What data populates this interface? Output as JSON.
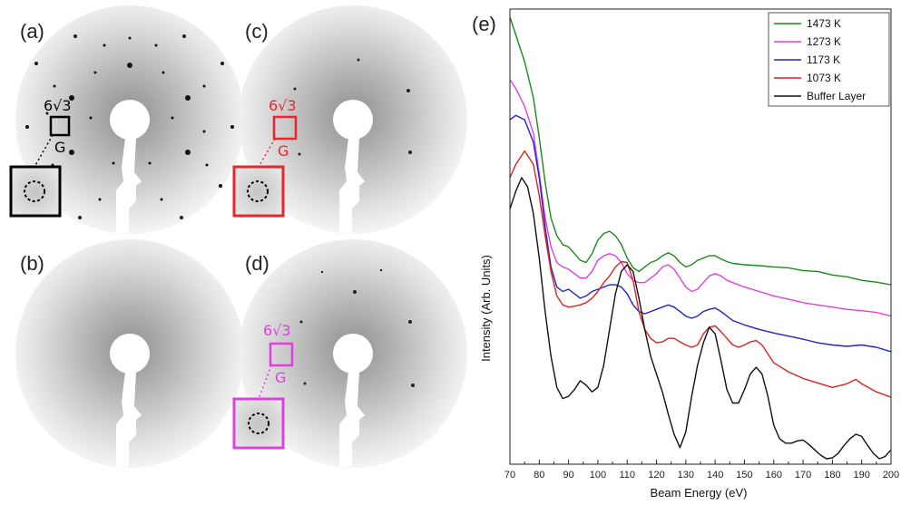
{
  "panels": {
    "a": {
      "label": "(a)",
      "annotation": "6√3",
      "sub": "G",
      "accent": "#000000"
    },
    "b": {
      "label": "(b)"
    },
    "c": {
      "label": "(c)",
      "annotation": "6√3",
      "sub": "G",
      "accent": "#e8262c"
    },
    "d": {
      "label": "(d)",
      "annotation": "6√3",
      "sub": "G",
      "accent": "#e040e0"
    }
  },
  "chart_data": {
    "type": "line",
    "panel_label": "(e)",
    "xlabel": "Beam Energy (eV)",
    "ylabel": "Intensity (Arb. Units)",
    "xlim": [
      70,
      200
    ],
    "xticks": [
      "70",
      "80",
      "90",
      "100",
      "110",
      "120",
      "130",
      "140",
      "150",
      "160",
      "170",
      "180",
      "190",
      "200"
    ],
    "ylim": [
      0,
      10
    ],
    "yticks_shown": false,
    "legend_position": "top-right",
    "series": [
      {
        "name": "1473 K",
        "color": "#1a8a1a",
        "x": [
          70,
          72,
          75,
          78,
          80,
          82,
          84,
          86,
          88,
          90,
          92,
          94,
          96,
          98,
          100,
          102,
          104,
          106,
          108,
          110,
          112,
          114,
          116,
          118,
          120,
          122,
          124,
          126,
          128,
          130,
          132,
          134,
          136,
          138,
          140,
          142,
          144,
          146,
          150,
          155,
          160,
          165,
          170,
          175,
          180,
          185,
          190,
          195,
          200
        ],
        "y": [
          9.9,
          9.5,
          8.9,
          8.1,
          7.2,
          6.2,
          5.4,
          5.0,
          4.8,
          4.75,
          4.6,
          4.45,
          4.4,
          4.6,
          4.9,
          5.05,
          5.1,
          5.0,
          4.8,
          4.5,
          4.28,
          4.2,
          4.3,
          4.4,
          4.45,
          4.55,
          4.62,
          4.55,
          4.4,
          4.3,
          4.35,
          4.45,
          4.5,
          4.55,
          4.55,
          4.48,
          4.42,
          4.38,
          4.35,
          4.33,
          4.3,
          4.28,
          4.22,
          4.2,
          4.12,
          4.08,
          4.0,
          3.96,
          3.9
        ]
      },
      {
        "name": "1273 K",
        "color": "#e040e0",
        "x": [
          70,
          72,
          75,
          78,
          80,
          82,
          84,
          86,
          88,
          90,
          92,
          94,
          96,
          98,
          100,
          102,
          104,
          106,
          108,
          110,
          112,
          114,
          116,
          118,
          120,
          122,
          124,
          126,
          128,
          130,
          132,
          134,
          136,
          138,
          140,
          142,
          144,
          146,
          150,
          155,
          160,
          165,
          170,
          175,
          180,
          185,
          190,
          195,
          200
        ],
        "y": [
          8.5,
          8.3,
          7.9,
          7.3,
          6.4,
          5.4,
          4.75,
          4.4,
          4.3,
          4.25,
          4.15,
          4.05,
          4.05,
          4.2,
          4.45,
          4.55,
          4.6,
          4.55,
          4.4,
          4.15,
          4.0,
          3.95,
          3.95,
          4.05,
          4.15,
          4.3,
          4.35,
          4.25,
          4.05,
          3.85,
          3.75,
          3.8,
          3.95,
          4.1,
          4.15,
          4.1,
          4.0,
          3.95,
          3.85,
          3.75,
          3.65,
          3.58,
          3.5,
          3.45,
          3.4,
          3.35,
          3.32,
          3.28,
          3.2
        ]
      },
      {
        "name": "1173 K",
        "color": "#2222cc",
        "x": [
          70,
          72,
          75,
          78,
          80,
          82,
          84,
          86,
          88,
          90,
          92,
          94,
          96,
          98,
          100,
          102,
          104,
          106,
          108,
          110,
          112,
          114,
          116,
          118,
          120,
          122,
          124,
          126,
          128,
          130,
          132,
          134,
          136,
          138,
          140,
          142,
          144,
          146,
          150,
          155,
          160,
          165,
          170,
          175,
          180,
          185,
          190,
          195,
          200
        ],
        "y": [
          7.6,
          7.7,
          7.6,
          7.1,
          6.3,
          5.2,
          4.3,
          3.85,
          3.75,
          3.8,
          3.7,
          3.6,
          3.65,
          3.75,
          3.8,
          3.85,
          3.9,
          3.9,
          3.85,
          3.7,
          3.45,
          3.3,
          3.25,
          3.3,
          3.35,
          3.4,
          3.45,
          3.4,
          3.3,
          3.2,
          3.15,
          3.2,
          3.3,
          3.35,
          3.38,
          3.3,
          3.2,
          3.1,
          3.0,
          2.9,
          2.82,
          2.75,
          2.68,
          2.6,
          2.55,
          2.52,
          2.55,
          2.5,
          2.4
        ]
      },
      {
        "name": "1073 K",
        "color": "#dd2222",
        "x": [
          70,
          72,
          75,
          78,
          80,
          82,
          84,
          86,
          88,
          90,
          92,
          94,
          96,
          98,
          100,
          102,
          104,
          106,
          108,
          110,
          112,
          114,
          116,
          118,
          120,
          122,
          124,
          126,
          128,
          130,
          132,
          134,
          136,
          138,
          140,
          142,
          144,
          146,
          148,
          150,
          152,
          154,
          156,
          158,
          160,
          165,
          170,
          175,
          180,
          185,
          188,
          190,
          195,
          200
        ],
        "y": [
          6.3,
          6.6,
          6.9,
          6.6,
          5.9,
          5.0,
          4.2,
          3.65,
          3.45,
          3.4,
          3.42,
          3.45,
          3.5,
          3.6,
          3.75,
          3.95,
          4.1,
          4.3,
          4.42,
          4.4,
          4.0,
          3.3,
          2.9,
          2.7,
          2.6,
          2.62,
          2.7,
          2.7,
          2.62,
          2.55,
          2.5,
          2.55,
          2.8,
          2.95,
          2.98,
          2.85,
          2.7,
          2.55,
          2.5,
          2.55,
          2.62,
          2.65,
          2.55,
          2.35,
          2.15,
          1.95,
          1.8,
          1.7,
          1.6,
          1.68,
          1.78,
          1.68,
          1.5,
          1.38
        ]
      },
      {
        "name": "Buffer Layer",
        "color": "#111111",
        "x": [
          70,
          72,
          74,
          76,
          78,
          80,
          82,
          84,
          86,
          88,
          90,
          92,
          94,
          96,
          98,
          100,
          102,
          104,
          106,
          108,
          110,
          112,
          114,
          116,
          118,
          120,
          122,
          124,
          126,
          128,
          130,
          132,
          134,
          136,
          138,
          140,
          142,
          144,
          146,
          148,
          150,
          152,
          154,
          156,
          158,
          160,
          162,
          164,
          166,
          168,
          170,
          172,
          174,
          176,
          178,
          180,
          182,
          184,
          186,
          188,
          190,
          192,
          194,
          196,
          198,
          200
        ],
        "y": [
          5.6,
          6.0,
          6.3,
          6.1,
          5.5,
          4.5,
          3.3,
          2.3,
          1.6,
          1.35,
          1.4,
          1.55,
          1.75,
          1.65,
          1.5,
          1.6,
          2.1,
          2.9,
          3.7,
          4.2,
          4.35,
          4.2,
          3.6,
          2.9,
          2.3,
          1.9,
          1.5,
          1.0,
          0.55,
          0.25,
          0.6,
          1.4,
          2.1,
          2.6,
          2.95,
          2.8,
          2.2,
          1.55,
          1.25,
          1.25,
          1.55,
          1.9,
          2.05,
          1.9,
          1.4,
          0.75,
          0.45,
          0.35,
          0.35,
          0.4,
          0.42,
          0.32,
          0.2,
          0.08,
          0.0,
          0.02,
          0.12,
          0.3,
          0.45,
          0.55,
          0.5,
          0.3,
          0.12,
          0.0,
          0.05,
          0.2
        ]
      }
    ]
  }
}
